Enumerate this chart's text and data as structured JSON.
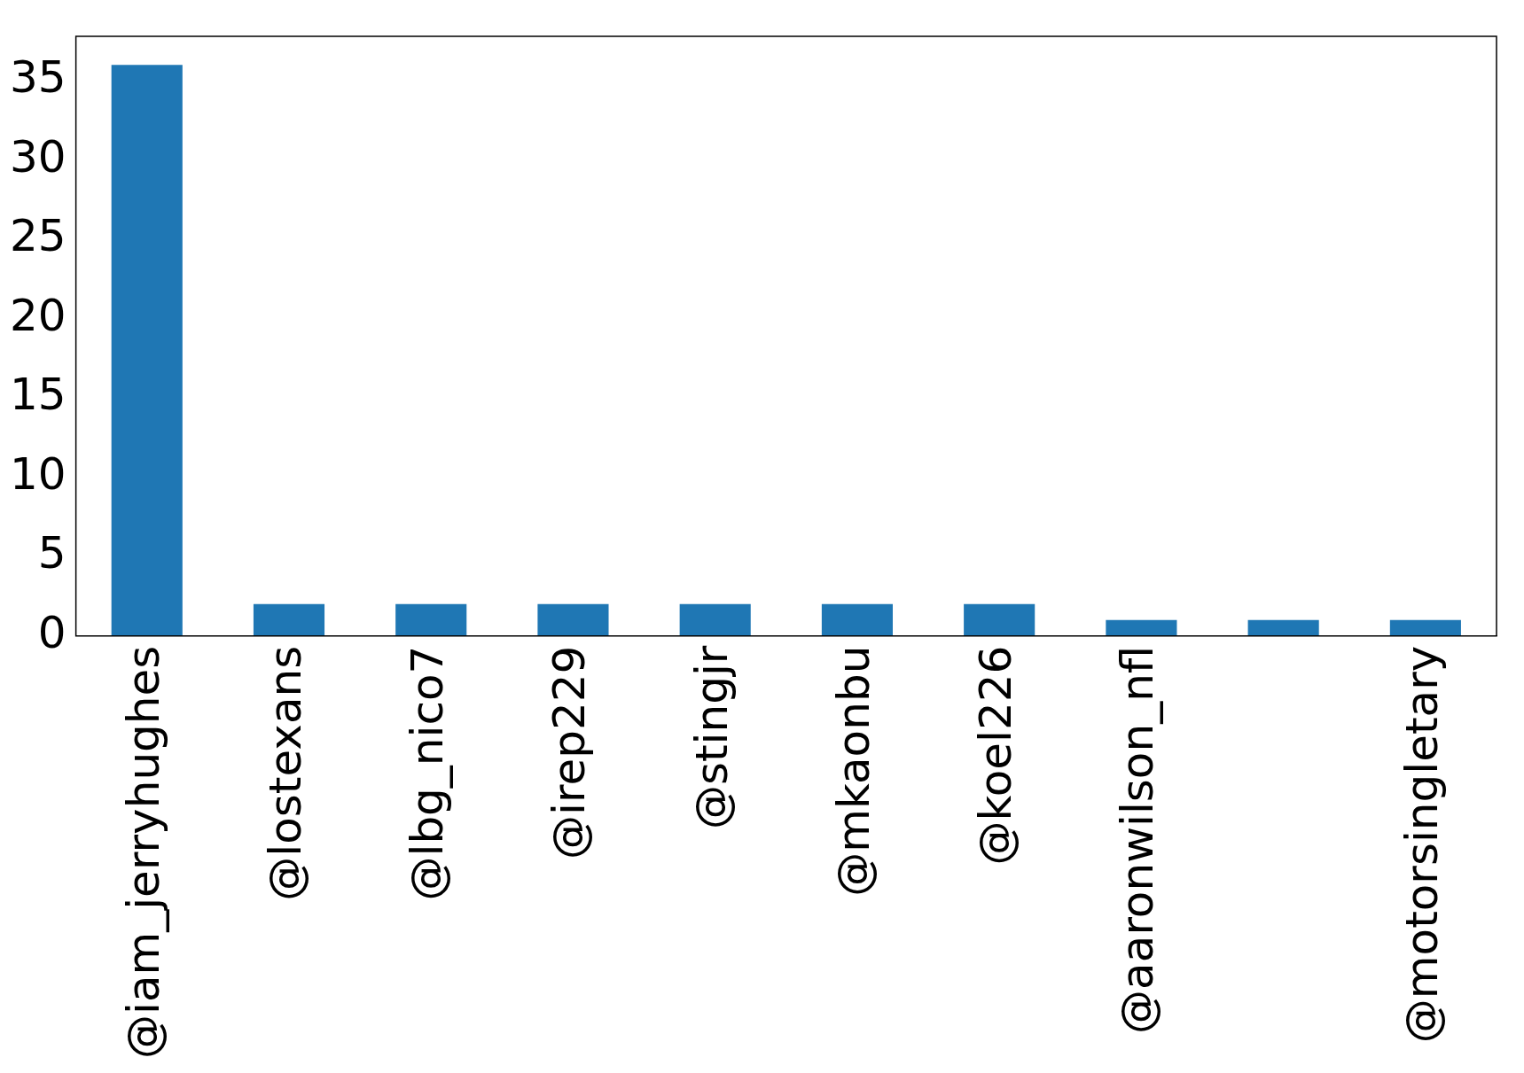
{
  "chart_data": {
    "type": "bar",
    "categories": [
      "@iam_jerryhughes",
      "@lostexans",
      "@lbg_nico7",
      "@irep229",
      "@stingjr",
      "@mkaonbu",
      "@koel226",
      "@aaronwilson_nfl",
      null,
      "@motorsingletary"
    ],
    "values": [
      36,
      2,
      2,
      2,
      2,
      2,
      2,
      1,
      1,
      1
    ],
    "color": "#1f77b4",
    "ylim": [
      0,
      37.8
    ],
    "yticks": [
      0,
      5,
      10,
      15,
      20,
      25,
      30,
      35
    ],
    "grid": false,
    "legend": false
  }
}
